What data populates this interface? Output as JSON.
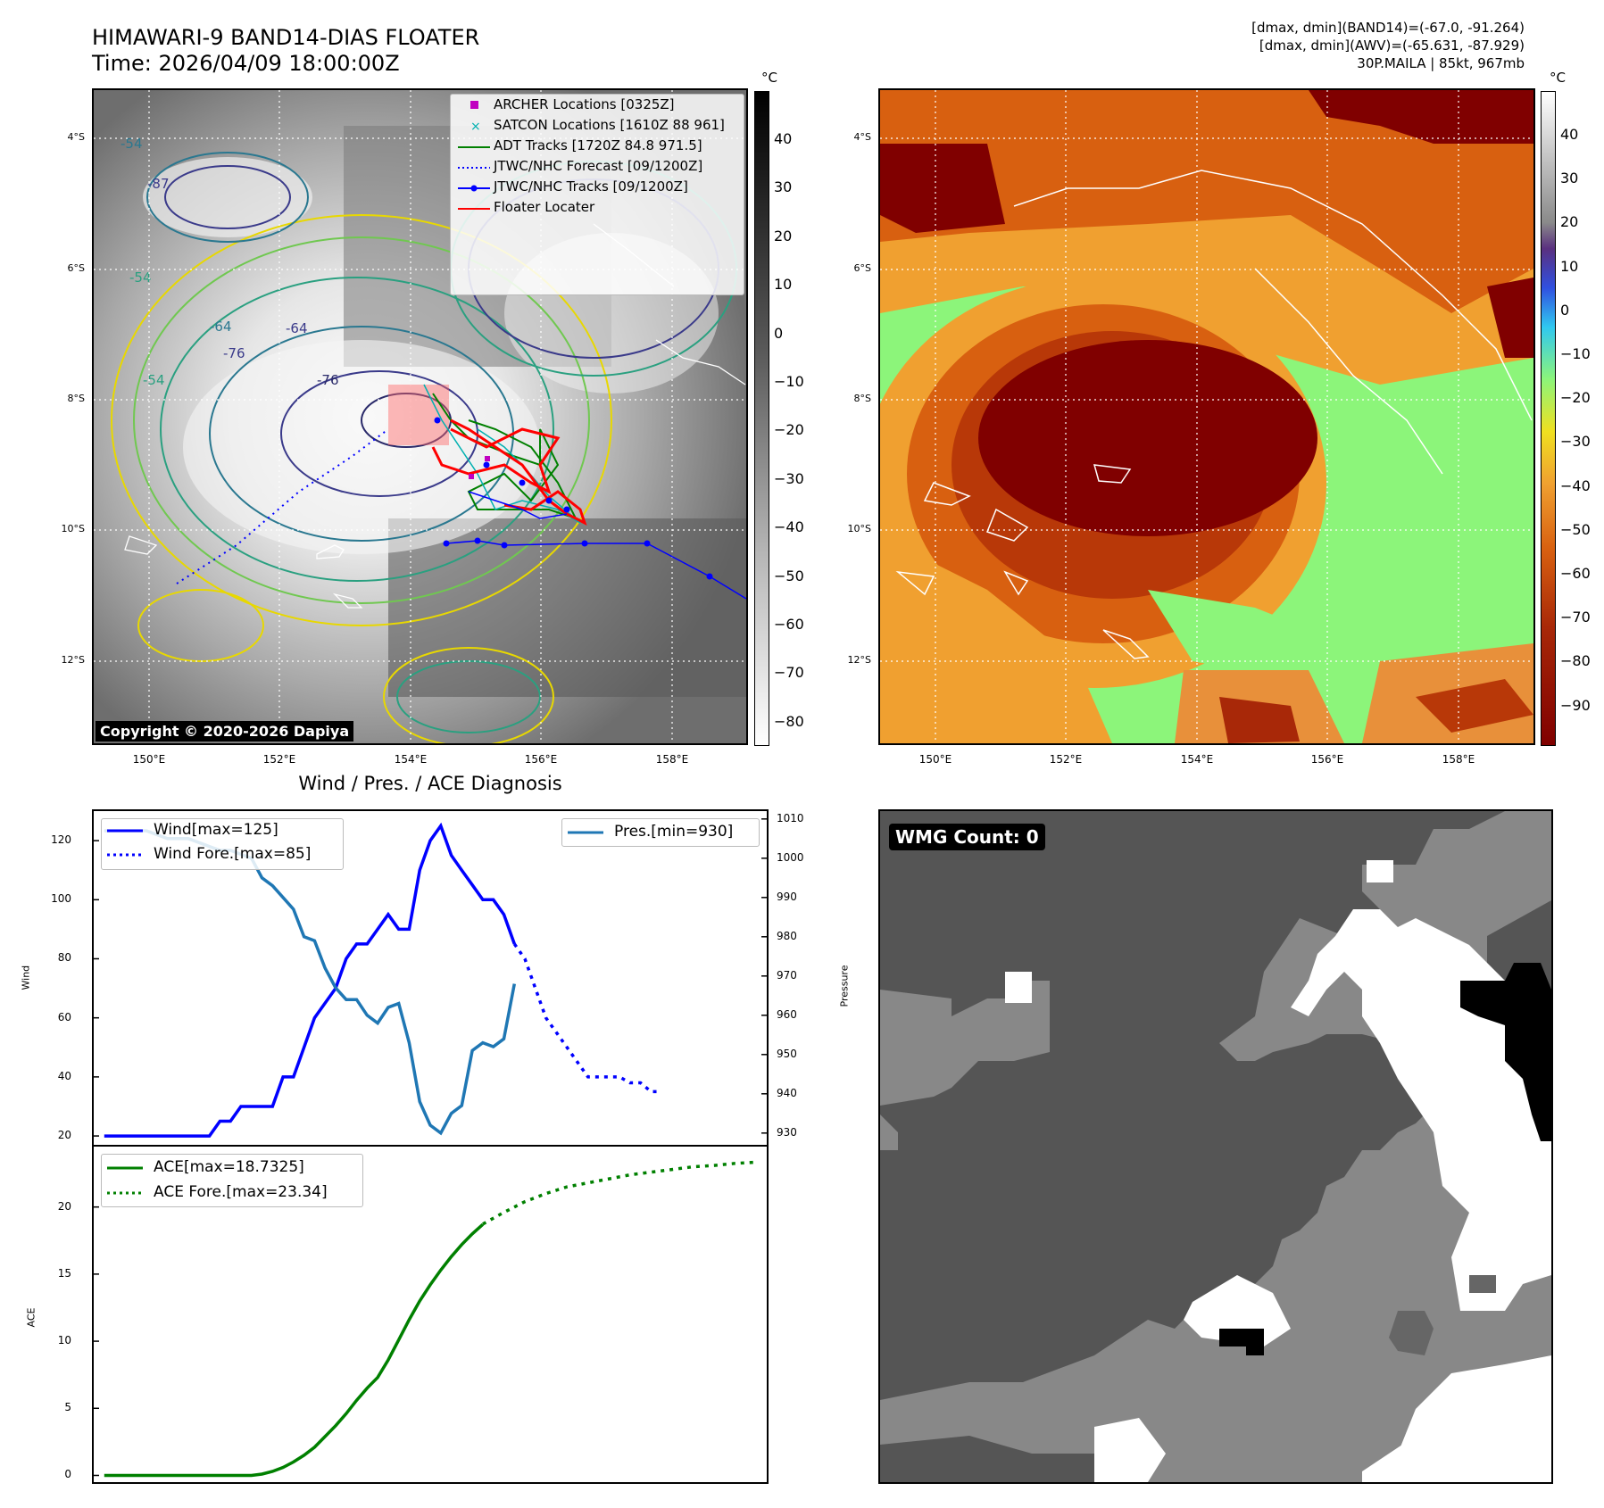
{
  "header": {
    "title_line1": "HIMAWARI-9 BAND14-DIAS FLOATER",
    "title_line2": "Time: 2026/04/09 18:00:00Z",
    "info_line1": "[dmax, dmin](BAND14)=(-67.0, -91.264)",
    "info_line2": "[dmax, dmin](AWV)=(-65.631, -87.929)",
    "info_line3": "30P.MAILA | 85kt, 967mb"
  },
  "map": {
    "lat_labels": [
      "4°S",
      "6°S",
      "8°S",
      "10°S",
      "12°S"
    ],
    "lon_labels": [
      "150°E",
      "152°E",
      "154°E",
      "156°E",
      "158°E"
    ],
    "copyright": "Copyright © 2020-2026 Dapiya",
    "colorbar_unit": "°C",
    "colorbar_ticks": [
      "40",
      "30",
      "20",
      "10",
      "0",
      "−10",
      "−20",
      "−30",
      "−40",
      "−50",
      "−60",
      "−70",
      "−80"
    ],
    "contour_labels": [
      "-54",
      "-54",
      "-64",
      "-76",
      "-64",
      "-76",
      "-87",
      "-54"
    ],
    "legend": [
      {
        "label": "ARCHER Locations [0325Z]",
        "color": "#c000c0"
      },
      {
        "label": "SATCON Locations [1610Z 88 961]",
        "color": "#00b0b0"
      },
      {
        "label": "ADT Tracks [1720Z 84.8 971.5]",
        "color": "#008000"
      },
      {
        "label": "JTWC/NHC Forecast [09/1200Z]",
        "color": "#0000ff"
      },
      {
        "label": "JTWC/NHC Tracks [09/1200Z]",
        "color": "#0000ff"
      },
      {
        "label": "Floater Locater",
        "color": "#ff0000"
      }
    ]
  },
  "awv": {
    "colorbar_unit": "°C",
    "colorbar_ticks": [
      "40",
      "30",
      "20",
      "10",
      "0",
      "−10",
      "−20",
      "−30",
      "−40",
      "−50",
      "−60",
      "−70",
      "−80",
      "−90"
    ]
  },
  "diagnosis": {
    "title": "Wind / Pres. / ACE Diagnosis",
    "wind_axis_label": "Wind",
    "pressure_axis_label": "Pressure",
    "ace_axis_label": "ACE",
    "legend_wind": "Wind[max=125]",
    "legend_wind_fore": "Wind Fore.[max=85]",
    "legend_pres": "Pres.[min=930]",
    "legend_ace": "ACE[max=18.7325]",
    "legend_ace_fore": "ACE Fore.[max=23.34]",
    "wind_ticks": [
      "120",
      "100",
      "80",
      "60",
      "40",
      "20"
    ],
    "pres_ticks": [
      "1010",
      "1000",
      "990",
      "980",
      "970",
      "960",
      "950",
      "940",
      "930"
    ],
    "ace_ticks": [
      "20",
      "15",
      "10",
      "5",
      "0"
    ]
  },
  "wmg": {
    "count_label": "WMG Count: 0"
  },
  "chart_data": [
    {
      "type": "line",
      "title": "Wind / Pres. / ACE Diagnosis",
      "ylabel": "Wind",
      "ylim": [
        17,
        130
      ],
      "series": [
        {
          "name": "Wind[max=125]",
          "color": "#0000ff",
          "x": [
            0,
            1,
            2,
            3,
            4,
            5,
            6,
            7,
            8,
            9,
            10,
            11,
            12,
            13,
            14,
            15,
            16,
            17,
            18,
            19,
            20,
            21,
            22,
            23,
            24,
            25,
            26,
            27,
            28,
            29,
            30,
            31,
            32,
            33,
            34,
            35,
            36,
            37,
            38,
            39,
            40,
            41,
            42,
            43
          ],
          "values": [
            20,
            20,
            20,
            20,
            20,
            20,
            20,
            20,
            20,
            20,
            20,
            25,
            25,
            30,
            30,
            30,
            30,
            40,
            40,
            50,
            60,
            65,
            70,
            80,
            85,
            85,
            90,
            95,
            90,
            90,
            110,
            120,
            125,
            115,
            110,
            105,
            100,
            100,
            95,
            85,
            null,
            null,
            null,
            null
          ]
        },
        {
          "name": "Wind Fore.[max=85]",
          "color": "#0000ff",
          "dash": "dotted",
          "x": [
            39,
            40,
            41,
            42,
            43,
            44,
            45,
            46,
            47,
            48,
            49,
            50,
            51,
            52,
            53
          ],
          "values": [
            85,
            80,
            70,
            60,
            55,
            50,
            45,
            40,
            40,
            40,
            40,
            38,
            38,
            35,
            35
          ]
        }
      ]
    },
    {
      "type": "line",
      "ylabel": "Pressure",
      "ylim": [
        927,
        1012
      ],
      "series": [
        {
          "name": "Pres.[min=930]",
          "color": "#1f77b4",
          "x": [
            0,
            1,
            2,
            3,
            4,
            5,
            6,
            7,
            8,
            9,
            10,
            11,
            12,
            13,
            14,
            15,
            16,
            17,
            18,
            19,
            20,
            21,
            22,
            23,
            24,
            25,
            26,
            27,
            28,
            29,
            30,
            31,
            32,
            33,
            34,
            35,
            36,
            37,
            38,
            39
          ],
          "values": [
            1007,
            1007,
            1007,
            1007,
            1007,
            1006,
            1005,
            1005,
            1005,
            1004,
            1003,
            1002,
            1002,
            1001,
            1000,
            995,
            993,
            990,
            987,
            980,
            979,
            972,
            967,
            964,
            964,
            960,
            958,
            962,
            963,
            953,
            938,
            932,
            930,
            935,
            937,
            951,
            953,
            952,
            954,
            968
          ]
        }
      ]
    },
    {
      "type": "line",
      "ylabel": "ACE",
      "ylim": [
        -0.5,
        24.5
      ],
      "series": [
        {
          "name": "ACE[max=18.7325]",
          "color": "#008000",
          "x": [
            0,
            1,
            2,
            3,
            4,
            5,
            6,
            7,
            8,
            9,
            10,
            11,
            12,
            13,
            14,
            15,
            16,
            17,
            18,
            19,
            20,
            21,
            22,
            23,
            24,
            25,
            26,
            27,
            28,
            29,
            30,
            31,
            32,
            33,
            34,
            35,
            36,
            37,
            38,
            39
          ],
          "values": [
            0,
            0,
            0,
            0,
            0,
            0,
            0,
            0,
            0,
            0,
            0,
            0,
            0,
            0,
            0,
            0.1,
            0.3,
            0.6,
            1.0,
            1.5,
            2.1,
            2.9,
            3.7,
            4.6,
            5.6,
            6.5,
            7.3,
            8.6,
            10.1,
            11.6,
            13.0,
            14.2,
            15.3,
            16.3,
            17.2,
            18.0,
            18.7,
            null,
            null,
            null
          ]
        },
        {
          "name": "ACE Fore.[max=23.34]",
          "color": "#008000",
          "dash": "dotted",
          "x": [
            36,
            38,
            40,
            42,
            44,
            46,
            48,
            50,
            52,
            54,
            56,
            58,
            60,
            62
          ],
          "values": [
            18.73,
            19.6,
            20.4,
            21.0,
            21.5,
            21.8,
            22.1,
            22.4,
            22.6,
            22.8,
            23.0,
            23.1,
            23.25,
            23.34
          ]
        }
      ]
    }
  ]
}
